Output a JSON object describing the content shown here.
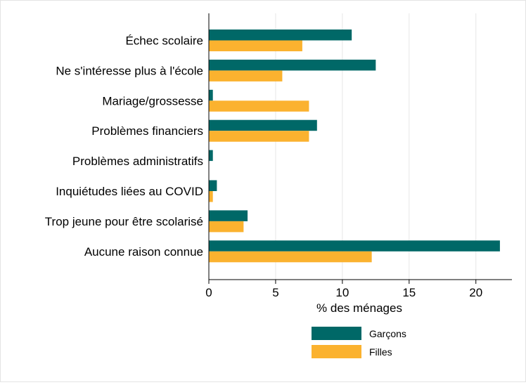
{
  "colors": {
    "garcons": "#006867",
    "filles": "#fbb22f",
    "axis": "#000000",
    "grid": "#e6e6e6"
  },
  "chart_data": {
    "type": "bar",
    "orientation": "horizontal",
    "categories": [
      "Échec scolaire",
      "Ne s'intéresse plus à l'école",
      "Mariage/grossesse",
      "Problèmes financiers",
      "Problèmes administratifs",
      "Inquiétudes liées au COVID",
      "Trop jeune pour être scolarisé",
      "Aucune raison connue"
    ],
    "series": [
      {
        "name": "Garçons",
        "color": "#006867",
        "values": [
          10.7,
          12.5,
          0.3,
          8.1,
          0.3,
          0.6,
          2.9,
          21.8
        ]
      },
      {
        "name": "Filles",
        "color": "#fbb22f",
        "values": [
          7.0,
          5.5,
          7.5,
          7.5,
          0.0,
          0.3,
          2.6,
          12.2
        ]
      }
    ],
    "title": "",
    "xlabel": "% des ménages",
    "ylabel": "",
    "xlim": [
      0,
      22.7
    ],
    "xticks": [
      0,
      5,
      10,
      15,
      20
    ],
    "grid": true,
    "legend_position": "bottom"
  }
}
